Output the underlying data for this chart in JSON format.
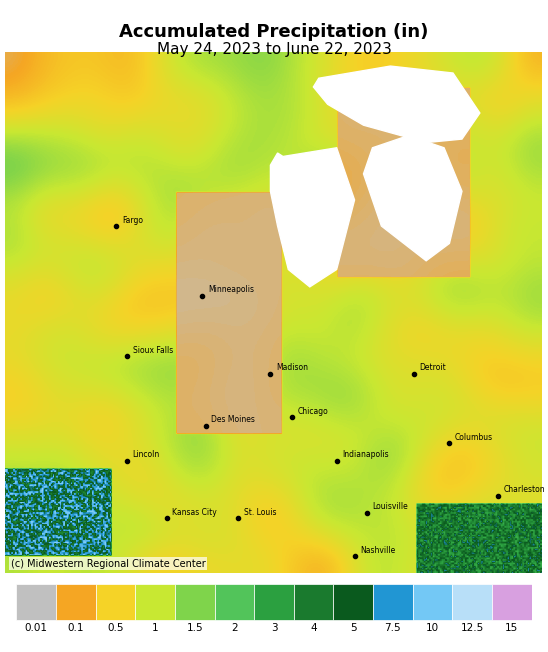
{
  "title": "Accumulated Precipitation (in)",
  "subtitle": "May 24, 2023 to June 22, 2023",
  "title_fontsize": 13,
  "subtitle_fontsize": 11,
  "colorbar_labels": [
    "0.01",
    "0.1",
    "0.5",
    "1",
    "1.5",
    "2",
    "3",
    "4",
    "5",
    "7.5",
    "10",
    "12.5",
    "15"
  ],
  "colorbar_colors": [
    "#C0C0C0",
    "#F5A623",
    "#F5D327",
    "#C8E832",
    "#7FD44B",
    "#52C45A",
    "#2BA040",
    "#1A7A2E",
    "#0A5A1E",
    "#2196D3",
    "#73C8F5",
    "#B8DFF8",
    "#D8A0E0"
  ],
  "credit_text": "(c) Midwestern Regional Climate Center",
  "credit_fontsize": 7,
  "background_color": "#FFFFFF",
  "map_image_path": null
}
